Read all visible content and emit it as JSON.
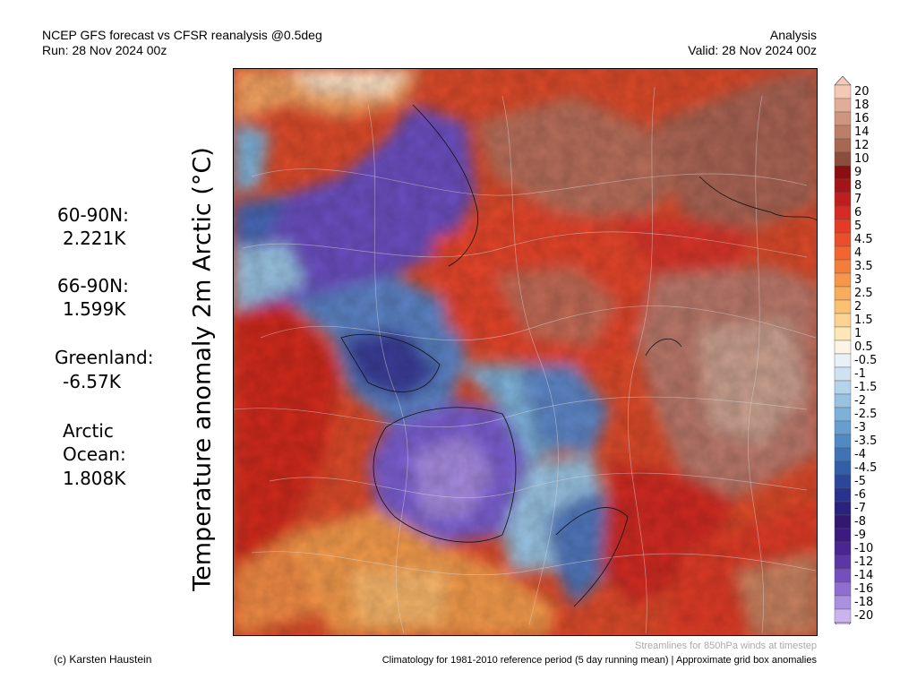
{
  "header": {
    "title_line1": "NCEP GFS forecast vs CFSR reanalysis @0.5deg",
    "title_line2": "Run: 28 Nov 2024 00z",
    "right_line1": "Analysis",
    "right_line2": "Valid: 28 Nov 2024 00z"
  },
  "y_axis_label": "Temperature anomaly 2m Arctic (°C)",
  "stats": {
    "n60_label": "60-90N:",
    "n60_value": "2.221K",
    "n66_label": "66-90N:",
    "n66_value": "1.599K",
    "greenland_label": "Greenland:",
    "greenland_value": "-6.57K",
    "arctic_label_1": "Arctic",
    "arctic_label_2": "Ocean:",
    "arctic_value": "1.808K"
  },
  "colorbar": {
    "labels": [
      "20",
      "18",
      "16",
      "14",
      "12",
      "10",
      "9",
      "8",
      "7",
      "6",
      "5",
      "4.5",
      "4",
      "3.5",
      "3",
      "2.5",
      "2",
      "1.5",
      "1",
      "0.5",
      "-0.5",
      "-1",
      "-1.5",
      "-2",
      "-2.5",
      "-3",
      "-3.5",
      "-4",
      "-4.5",
      "-5",
      "-6",
      "-7",
      "-8",
      "-9",
      "-10",
      "-12",
      "-14",
      "-16",
      "-18",
      "-20"
    ],
    "colors": [
      "#f3c9b6",
      "#e2ad98",
      "#d0957e",
      "#bd7e67",
      "#a76753",
      "#8d4d3d",
      "#8a0e12",
      "#a31518",
      "#bf1e1f",
      "#d62b24",
      "#e23b26",
      "#ea4f2a",
      "#f0662e",
      "#f37d3a",
      "#f6964a",
      "#f8ad5c",
      "#fac172",
      "#fcd492",
      "#fde6b8",
      "#fcf4e4",
      "#e8f1f8",
      "#cfe2f1",
      "#b5d3ea",
      "#99c2e1",
      "#7eb1d8",
      "#669fce",
      "#5189c2",
      "#3f73b5",
      "#335ea8",
      "#2c4799",
      "#2a338b",
      "#2a227c",
      "#32196f",
      "#3d1a80",
      "#4b2592",
      "#5d36a6",
      "#7550bd",
      "#8f6ed0",
      "#ab90e0",
      "#c9b4ee"
    ]
  },
  "footer": {
    "credit": "(c) Karsten Haustein",
    "streamlines_note": "Streamlines for 850hPa winds at timestep",
    "climatology_note": "Climatology for 1981-2010 reference period (5 day running mean) | Approximate grid box anomalies"
  }
}
